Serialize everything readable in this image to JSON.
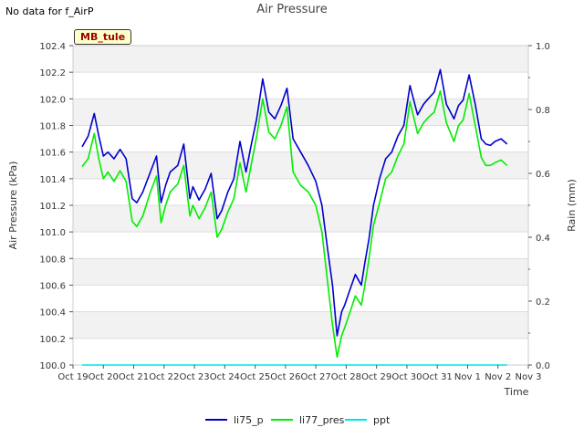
{
  "header": {
    "note": "No data for f_AirP",
    "badge": "MB_tule"
  },
  "chart_data": {
    "type": "line",
    "title": "Air Pressure",
    "xlabel": "Time",
    "ylabel": "Air Pressure (kPa)",
    "y2label": "Rain (mm)",
    "xlim": [
      0,
      15
    ],
    "ylim": [
      100.0,
      102.4
    ],
    "y2lim": [
      0.0,
      1.0
    ],
    "x_ticks": [
      0,
      1,
      2,
      3,
      4,
      5,
      6,
      7,
      8,
      9,
      10,
      11,
      12,
      13,
      14,
      15
    ],
    "x_tick_labels": [
      "Oct 19",
      "Oct 20",
      "Oct 21",
      "Oct 22",
      "Oct 23",
      "Oct 24",
      "Oct 25",
      "Oct 26",
      "Oct 27",
      "Oct 28",
      "Oct 29",
      "Oct 30",
      "Oct 31",
      "Nov 1",
      "Nov 2",
      "Nov 3"
    ],
    "y_ticks": [
      "100.0",
      "100.2",
      "100.4",
      "100.6",
      "100.8",
      "101.0",
      "101.2",
      "101.4",
      "101.6",
      "101.8",
      "102.0",
      "102.2",
      "102.4"
    ],
    "y2_ticks": [
      "0.0",
      "0.2",
      "0.4",
      "0.6",
      "0.8",
      "1.0"
    ],
    "grid": true,
    "legend_position": "bottom-center",
    "series": [
      {
        "name": "li75_p",
        "color": "#0000cc",
        "axis": "left",
        "x": [
          0.3,
          0.5,
          0.7,
          0.85,
          1.0,
          1.15,
          1.35,
          1.55,
          1.75,
          1.95,
          2.1,
          2.3,
          2.55,
          2.75,
          2.9,
          3.05,
          3.2,
          3.45,
          3.65,
          3.85,
          3.95,
          4.15,
          4.35,
          4.55,
          4.75,
          4.9,
          5.1,
          5.3,
          5.5,
          5.7,
          5.85,
          6.05,
          6.25,
          6.45,
          6.65,
          6.85,
          7.05,
          7.25,
          7.5,
          7.75,
          8.0,
          8.2,
          8.4,
          8.55,
          8.7,
          8.85,
          8.95,
          9.1,
          9.3,
          9.5,
          9.6,
          9.75,
          9.9,
          10.1,
          10.3,
          10.5,
          10.7,
          10.9,
          11.1,
          11.35,
          11.55,
          11.7,
          11.9,
          12.1,
          12.3,
          12.55,
          12.7,
          12.85,
          13.05,
          13.25,
          13.45,
          13.6,
          13.75,
          13.9,
          14.1,
          14.3
        ],
        "values": [
          101.64,
          101.72,
          101.89,
          101.72,
          101.57,
          101.6,
          101.55,
          101.62,
          101.55,
          101.25,
          101.22,
          101.3,
          101.45,
          101.57,
          101.22,
          101.35,
          101.45,
          101.5,
          101.66,
          101.25,
          101.34,
          101.24,
          101.32,
          101.44,
          101.1,
          101.16,
          101.3,
          101.4,
          101.68,
          101.45,
          101.63,
          101.85,
          102.15,
          101.9,
          101.85,
          101.95,
          102.08,
          101.7,
          101.6,
          101.5,
          101.38,
          101.2,
          100.85,
          100.6,
          100.22,
          100.4,
          100.45,
          100.55,
          100.68,
          100.6,
          100.75,
          100.95,
          101.2,
          101.4,
          101.55,
          101.6,
          101.72,
          101.8,
          102.1,
          101.88,
          101.96,
          102.0,
          102.05,
          102.22,
          101.96,
          101.85,
          101.95,
          101.99,
          102.18,
          101.96,
          101.7,
          101.66,
          101.65,
          101.68,
          101.7,
          101.66
        ]
      },
      {
        "name": "li77_pres",
        "color": "#00ee00",
        "axis": "left",
        "x": [
          0.3,
          0.5,
          0.7,
          0.85,
          1.0,
          1.15,
          1.35,
          1.55,
          1.75,
          1.95,
          2.1,
          2.3,
          2.55,
          2.75,
          2.9,
          3.05,
          3.2,
          3.45,
          3.65,
          3.85,
          3.95,
          4.15,
          4.35,
          4.55,
          4.75,
          4.9,
          5.1,
          5.3,
          5.5,
          5.7,
          5.85,
          6.05,
          6.25,
          6.45,
          6.65,
          6.85,
          7.05,
          7.25,
          7.5,
          7.75,
          8.0,
          8.2,
          8.4,
          8.55,
          8.7,
          8.85,
          8.95,
          9.1,
          9.3,
          9.5,
          9.6,
          9.75,
          9.9,
          10.1,
          10.3,
          10.5,
          10.7,
          10.9,
          11.1,
          11.35,
          11.55,
          11.7,
          11.9,
          12.1,
          12.3,
          12.55,
          12.7,
          12.85,
          13.05,
          13.25,
          13.45,
          13.6,
          13.75,
          13.9,
          14.1,
          14.3
        ],
        "values": [
          101.49,
          101.55,
          101.74,
          101.55,
          101.4,
          101.45,
          101.38,
          101.46,
          101.38,
          101.08,
          101.04,
          101.12,
          101.3,
          101.42,
          101.07,
          101.2,
          101.3,
          101.36,
          101.5,
          101.12,
          101.2,
          101.1,
          101.18,
          101.3,
          100.96,
          101.02,
          101.15,
          101.25,
          101.52,
          101.3,
          101.48,
          101.72,
          102.0,
          101.75,
          101.7,
          101.8,
          101.94,
          101.45,
          101.35,
          101.3,
          101.2,
          101.0,
          100.6,
          100.3,
          100.06,
          100.22,
          100.28,
          100.38,
          100.52,
          100.45,
          100.58,
          100.8,
          101.05,
          101.22,
          101.4,
          101.45,
          101.57,
          101.66,
          101.98,
          101.74,
          101.82,
          101.86,
          101.9,
          102.06,
          101.82,
          101.68,
          101.8,
          101.84,
          102.04,
          101.8,
          101.56,
          101.5,
          101.5,
          101.52,
          101.54,
          101.5
        ]
      },
      {
        "name": "ppt",
        "color": "#00e5e5",
        "axis": "right",
        "x": [
          0.3,
          14.3
        ],
        "values": [
          0.0,
          0.0
        ]
      }
    ]
  }
}
